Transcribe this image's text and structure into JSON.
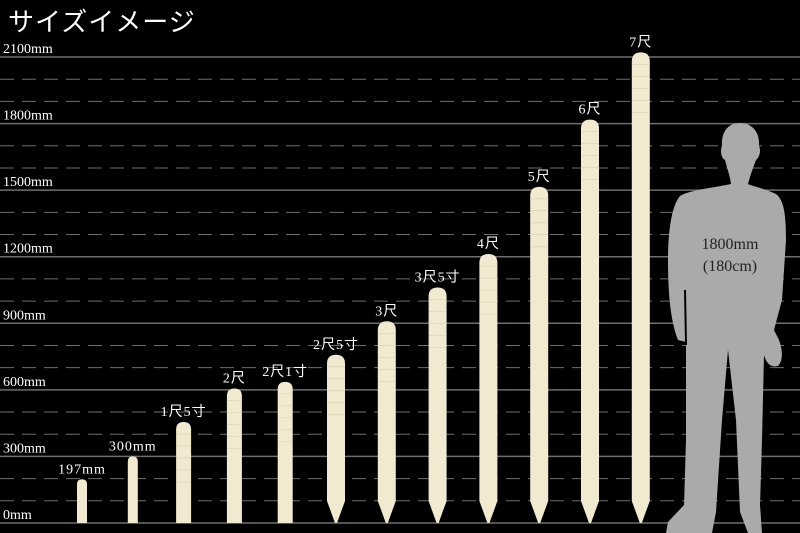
{
  "title": "サイズイメージ",
  "chart_data": {
    "type": "bar",
    "title": "サイズイメージ",
    "ylim": [
      0,
      2100
    ],
    "yticks": [
      0,
      300,
      600,
      900,
      1200,
      1500,
      1800,
      2100
    ],
    "ytick_labels": [
      "0mm",
      "300mm",
      "600mm",
      "900mm",
      "1200mm",
      "1500mm",
      "1800mm",
      "2100mm"
    ],
    "minor_grid_step": 100,
    "grid": true,
    "categories": [
      "197mm",
      "300mm",
      "1尺5寸",
      "2尺",
      "2尺1寸",
      "2尺5寸",
      "3尺",
      "3尺5寸",
      "4尺",
      "5尺",
      "6尺",
      "7尺"
    ],
    "values": [
      197,
      300,
      455,
      606,
      636,
      758,
      909,
      1061,
      1212,
      1515,
      1818,
      2121
    ],
    "pointed_bottom_from": "2尺5寸",
    "reference": {
      "label_1": "1800mm",
      "label_2": "(180cm)",
      "value": 1800,
      "icon": "human-silhouette-icon"
    },
    "colors": {
      "background": "#000000",
      "bar": "#f1ead0",
      "grid": "#6e6e6e",
      "silhouette": "#a9abab",
      "text": "#ffffff"
    }
  }
}
